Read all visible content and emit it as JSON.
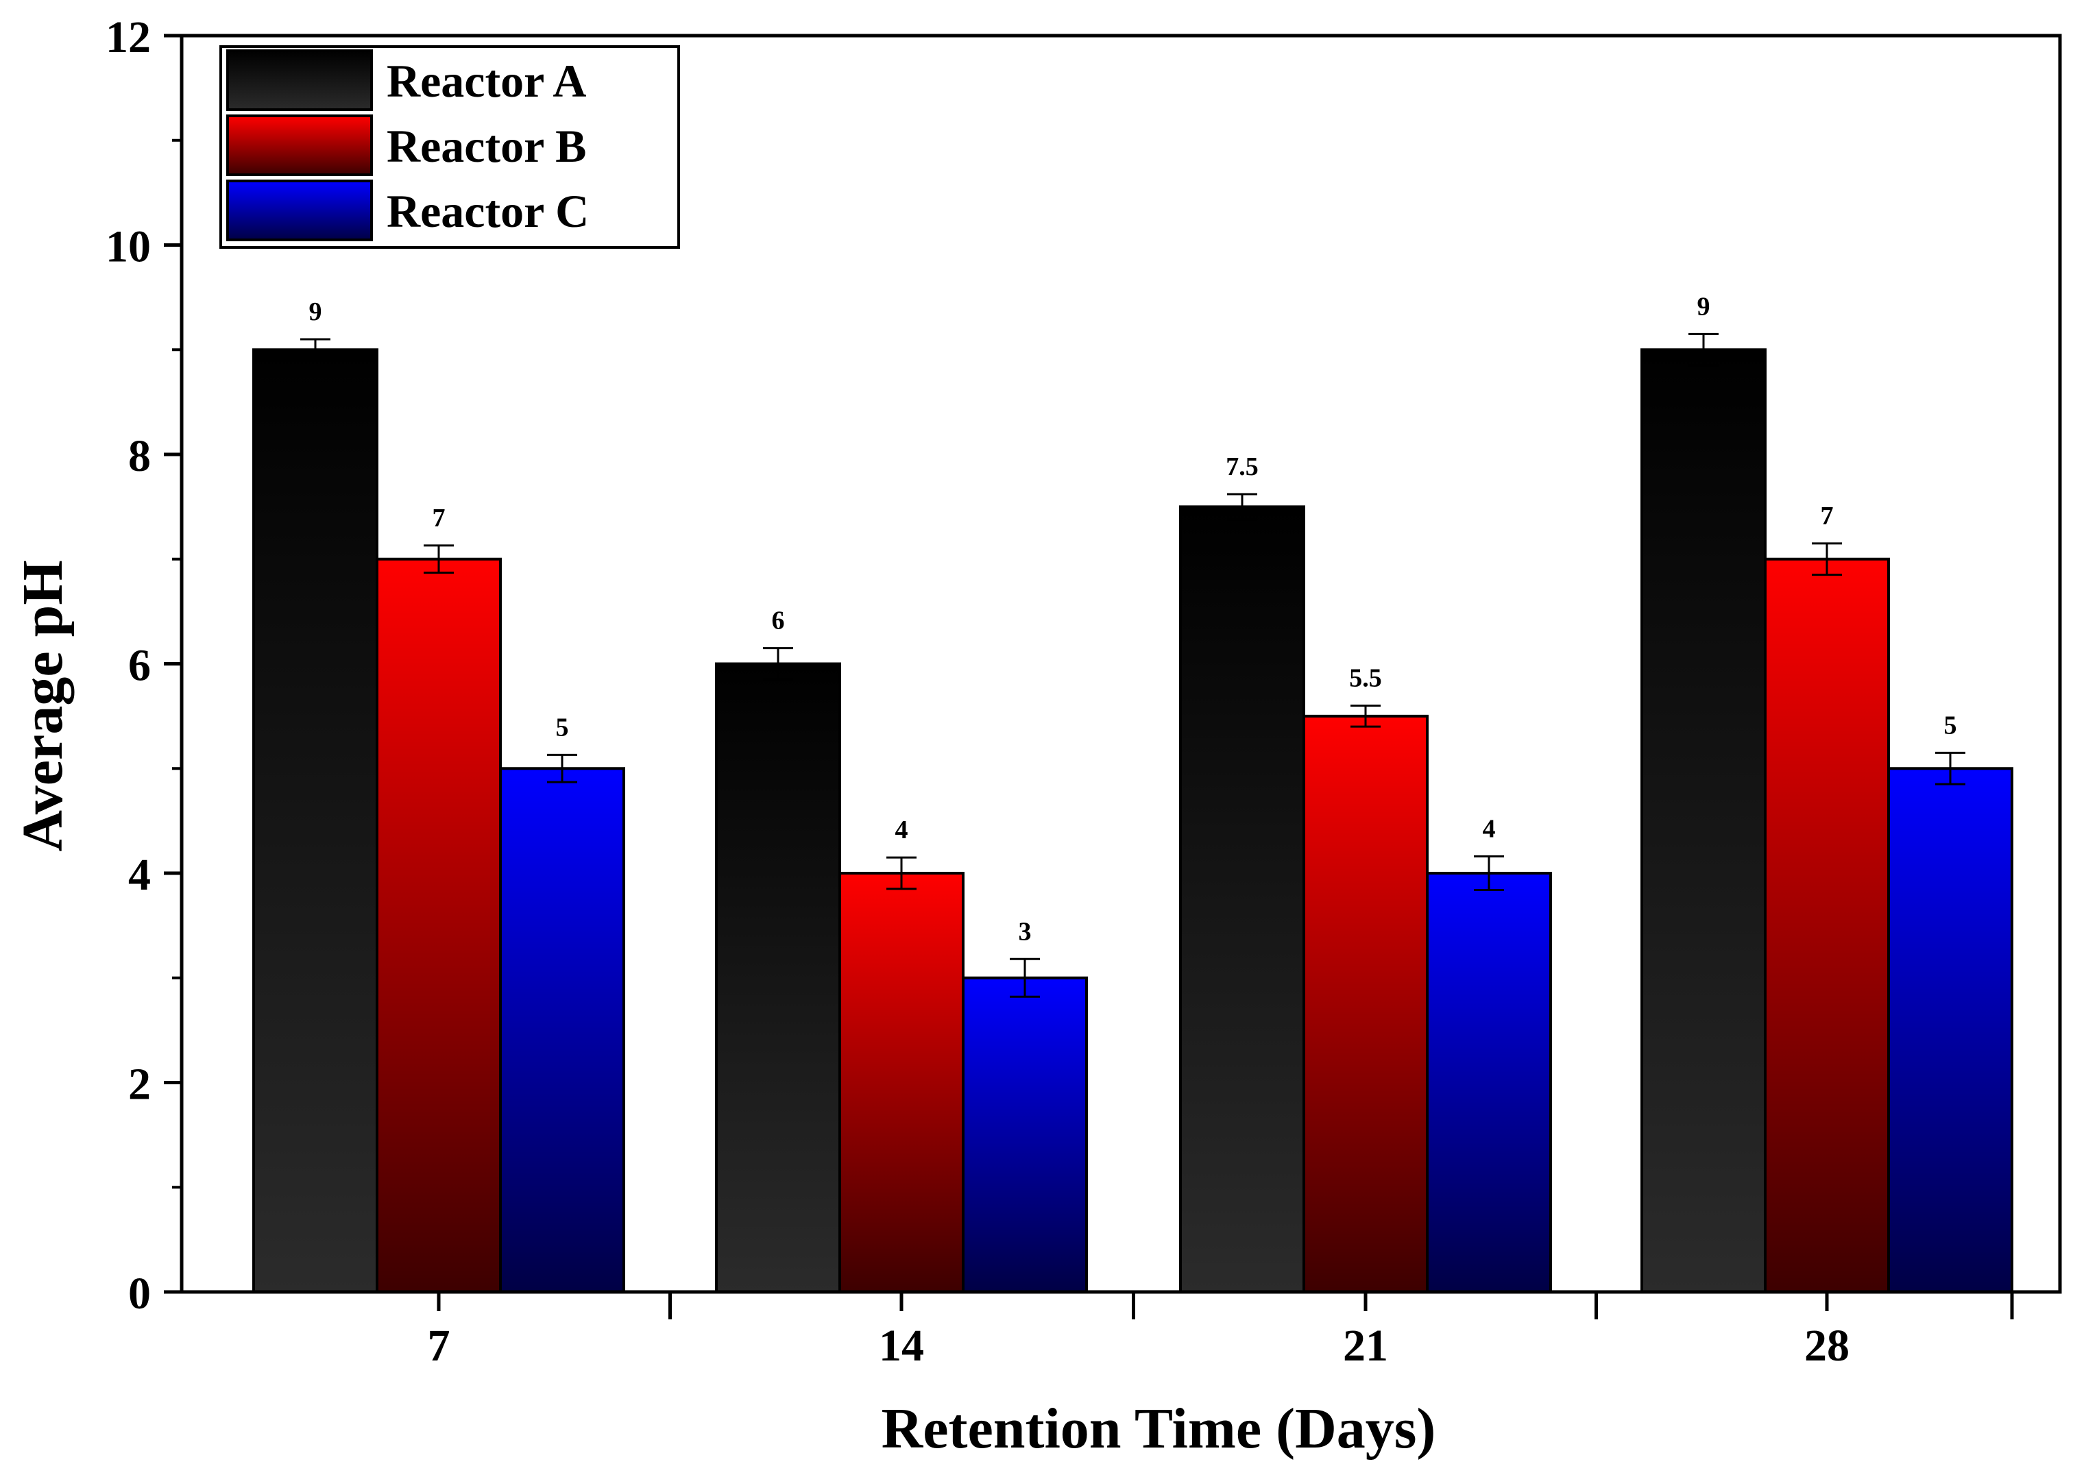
{
  "chart_data": {
    "type": "bar",
    "title": "",
    "xlabel": "Retention Time (Days)",
    "ylabel": "Average pH",
    "categories": [
      "7",
      "14",
      "21",
      "28"
    ],
    "ylim": [
      0,
      12
    ],
    "yticks": [
      0,
      2,
      4,
      6,
      8,
      10,
      12
    ],
    "ytick_labels": [
      "0",
      "2",
      "4",
      "6",
      "8",
      "10",
      "12"
    ],
    "legend_position": "top-left",
    "grid": false,
    "series": [
      {
        "name": "Reactor A",
        "values": [
          9,
          6,
          7.5,
          9
        ],
        "value_labels": [
          "9",
          "6",
          "7.5",
          "9"
        ],
        "errors": [
          0.1,
          0.15,
          0.12,
          0.15
        ],
        "color_top": "#000000",
        "color_bottom": "#2b2b2b"
      },
      {
        "name": "Reactor B",
        "values": [
          7,
          4,
          5.5,
          7
        ],
        "value_labels": [
          "7",
          "4",
          "5.5",
          "7"
        ],
        "errors": [
          0.13,
          0.15,
          0.1,
          0.15
        ],
        "color_top": "#ff0000",
        "color_bottom": "#3d0000"
      },
      {
        "name": "Reactor C",
        "values": [
          5,
          3,
          4,
          5
        ],
        "value_labels": [
          "5",
          "3",
          "4",
          "5"
        ],
        "errors": [
          0.13,
          0.18,
          0.16,
          0.15
        ],
        "color_top": "#0000ff",
        "color_bottom": "#000045"
      }
    ]
  }
}
